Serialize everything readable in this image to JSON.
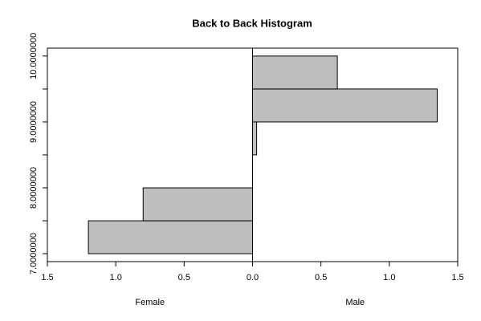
{
  "chart_data": {
    "type": "histogram",
    "title": "Back to Back Histogram",
    "bins": [
      7,
      7.5,
      8,
      8.5,
      9,
      9.5,
      10
    ],
    "series": [
      {
        "name": "Female",
        "side": "left",
        "color": "#bebebe",
        "values": [
          1.2,
          0.8,
          0,
          0,
          0,
          0
        ]
      },
      {
        "name": "Male",
        "side": "right",
        "color": "#bebebe",
        "values": [
          0,
          0,
          0,
          0.03,
          1.35,
          0.62
        ]
      }
    ],
    "xlim": [
      -1.5,
      1.5
    ],
    "xticks": [
      {
        "value": -1.5,
        "label": "1.5"
      },
      {
        "value": -1,
        "label": "1.0"
      },
      {
        "value": -0.5,
        "label": "0.5"
      },
      {
        "value": 0,
        "label": "0.0"
      },
      0.5,
      {
        "value": 1,
        "label": "1.0"
      },
      1.5
    ],
    "ylim": [
      6.88,
      10.12
    ],
    "yticks": [
      {
        "value": 7,
        "label": "7.0000000"
      },
      {
        "value": 8,
        "label": "8.0000000"
      },
      {
        "value": 9,
        "label": "9.0000000"
      },
      {
        "value": 10,
        "label": "10.0000000"
      }
    ],
    "yminor_ticks": [
      7.5,
      8.5,
      9.5
    ],
    "grid": false
  }
}
